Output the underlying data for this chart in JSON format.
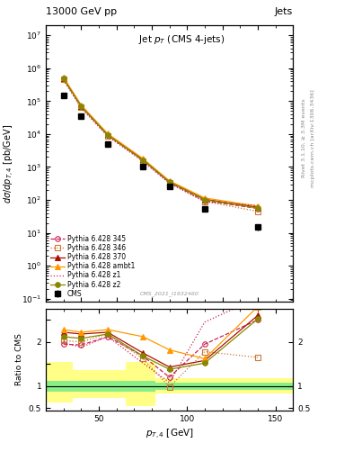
{
  "title_top_left": "13000 GeV pp",
  "title_top_right": "Jets",
  "plot_title": "Jet $p_T$ (CMS 4-jets)",
  "xlabel": "$p_{T,4}$ [GeV]",
  "ylabel_main": "$d\\sigma/dp_{T,4}$ [pb/GeV]",
  "ylabel_ratio": "Ratio to CMS",
  "cms_id": "CMS_2021_I1932460",
  "x_data": [
    30,
    40,
    55,
    75,
    90,
    110,
    140
  ],
  "cms_y": [
    150000.0,
    35000.0,
    5000,
    1050,
    260,
    55,
    15
  ],
  "cms_yerr_lo": [
    20000.0,
    4000.0,
    500,
    100,
    30,
    7,
    3
  ],
  "cms_yerr_hi": [
    20000.0,
    4000.0,
    500,
    100,
    30,
    7,
    3
  ],
  "p345_y": [
    480000.0,
    68000.0,
    9200,
    1600,
    340,
    95,
    55
  ],
  "p346_y": [
    460000.0,
    65000.0,
    8900,
    1550,
    330,
    90,
    45
  ],
  "p370_y": [
    500000.0,
    72000.0,
    9800,
    1700,
    360,
    105,
    60
  ],
  "pambt1_y": [
    530000.0,
    76000.0,
    10300.0,
    1800,
    380,
    115,
    65
  ],
  "pz1_y": [
    430000.0,
    62000.0,
    8600,
    1480,
    320,
    88,
    68
  ],
  "pz2_y": [
    480000.0,
    70000.0,
    9500,
    1640,
    355,
    102,
    57
  ],
  "ratio_x": [
    30,
    40,
    55,
    75,
    90,
    110,
    140
  ],
  "r345_y": [
    1.95,
    1.93,
    2.12,
    1.68,
    1.2,
    1.95,
    2.5
  ],
  "r346_y": [
    2.03,
    2.0,
    2.18,
    1.62,
    0.98,
    1.78,
    1.65
  ],
  "r370_y": [
    2.22,
    2.18,
    2.22,
    1.75,
    1.43,
    1.58,
    2.6
  ],
  "rambt1_y": [
    2.28,
    2.22,
    2.28,
    2.12,
    1.82,
    1.62,
    2.8
  ],
  "rz1_y": [
    1.98,
    1.88,
    2.12,
    1.52,
    1.08,
    2.45,
    3.0
  ],
  "rz2_y": [
    2.12,
    2.08,
    2.18,
    1.68,
    1.38,
    1.52,
    2.52
  ],
  "band_edges": [
    20,
    35,
    50,
    65,
    82,
    110,
    160
  ],
  "band_green_lo": [
    0.88,
    0.88,
    0.88,
    0.88,
    0.92,
    0.92
  ],
  "band_green_hi": [
    1.12,
    1.12,
    1.12,
    1.12,
    1.08,
    1.08
  ],
  "band_yellow_lo": [
    0.62,
    0.72,
    0.72,
    0.55,
    0.83,
    0.83
  ],
  "band_yellow_hi": [
    1.54,
    1.37,
    1.37,
    1.54,
    1.17,
    1.17
  ],
  "color_345": "#cc2255",
  "color_346": "#cc7733",
  "color_370": "#aa1100",
  "color_ambt1": "#ff9900",
  "color_z1": "#cc2255",
  "color_z2": "#888800",
  "xlim": [
    20,
    160
  ],
  "ylim_main": [
    0.08,
    20000000.0
  ],
  "ylim_ratio": [
    0.45,
    2.75
  ],
  "right_labels": [
    "mcplots.cern.ch [arXiv:1306.3436]",
    "Rivet 3.1.10, ≥ 3.3M events"
  ]
}
